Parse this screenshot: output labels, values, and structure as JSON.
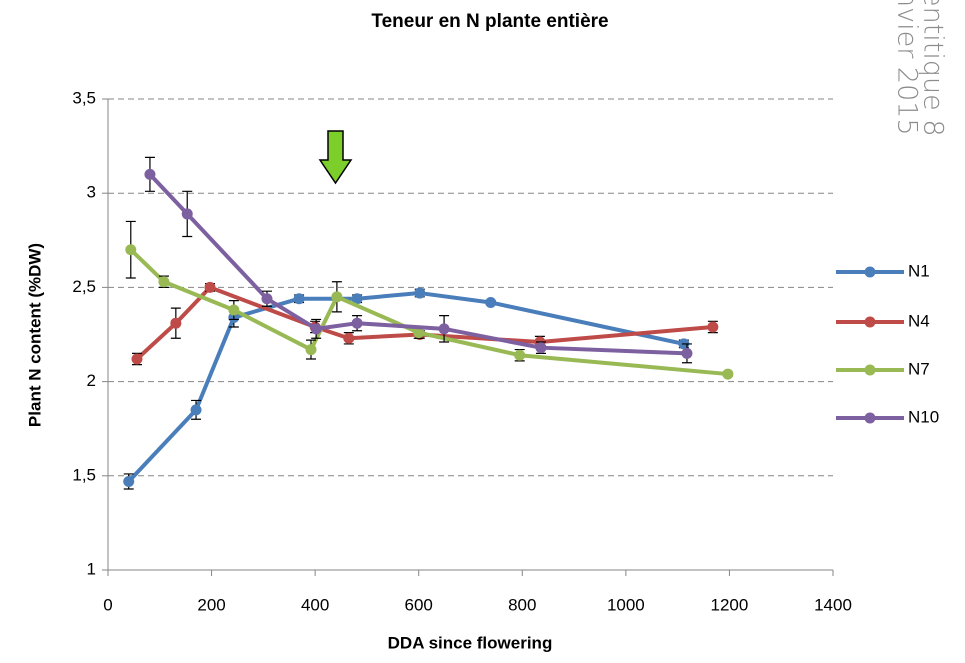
{
  "chart_data": {
    "type": "line",
    "title": "Teneur en N plante entière",
    "x_label": "DDA since flowering",
    "y_label": "Plant N content (%DW)",
    "side_text": [
      "entitique 8",
      "nvier 2015"
    ],
    "xlim": [
      0,
      1400
    ],
    "xticks": [
      0,
      200,
      400,
      600,
      800,
      1000,
      1200,
      1400
    ],
    "ylim": [
      1,
      3.5
    ],
    "yticks": [
      1,
      {
        "value": 1.5,
        "label": "1,5"
      },
      2,
      {
        "value": 2.5,
        "label": "2,5"
      },
      3,
      {
        "value": 3.5,
        "label": "3,5"
      }
    ],
    "grid": true,
    "legend": "right",
    "series": [
      {
        "name": "N1",
        "color": "#4a7ebb",
        "x": [
          40,
          170,
          243,
          369,
          481,
          602,
          739,
          1112
        ],
        "values": [
          1.47,
          1.85,
          2.34,
          2.44,
          2.44,
          2.47,
          2.42,
          2.2
        ],
        "errors": [
          0.04,
          0.05,
          0.05,
          0.02,
          0.02,
          0.02,
          0.01,
          0.02
        ]
      },
      {
        "name": "N4",
        "color": "#be4b48",
        "x": [
          56,
          131,
          197,
          400,
          465,
          602,
          834,
          1168
        ],
        "values": [
          2.12,
          2.31,
          2.5,
          2.29,
          2.23,
          2.25,
          2.21,
          2.29
        ],
        "errors": [
          0.03,
          0.08,
          0.02,
          0.03,
          0.03,
          0.02,
          0.03,
          0.03
        ]
      },
      {
        "name": "N7",
        "color": "#98b954",
        "x": [
          44,
          108,
          243,
          392,
          442,
          600,
          795,
          1197
        ],
        "values": [
          2.7,
          2.53,
          2.38,
          2.17,
          2.45,
          2.26,
          2.14,
          2.04
        ],
        "errors": [
          0.15,
          0.03,
          0.05,
          0.05,
          0.08,
          0.03,
          0.03,
          0.01
        ]
      },
      {
        "name": "N10",
        "color": "#7d60a0",
        "x": [
          81,
          153,
          307,
          402,
          481,
          649,
          836,
          1118
        ],
        "values": [
          3.1,
          2.89,
          2.44,
          2.28,
          2.31,
          2.28,
          2.18,
          2.15
        ],
        "errors": [
          0.09,
          0.12,
          0.04,
          0.05,
          0.04,
          0.07,
          0.03,
          0.05
        ]
      }
    ]
  }
}
